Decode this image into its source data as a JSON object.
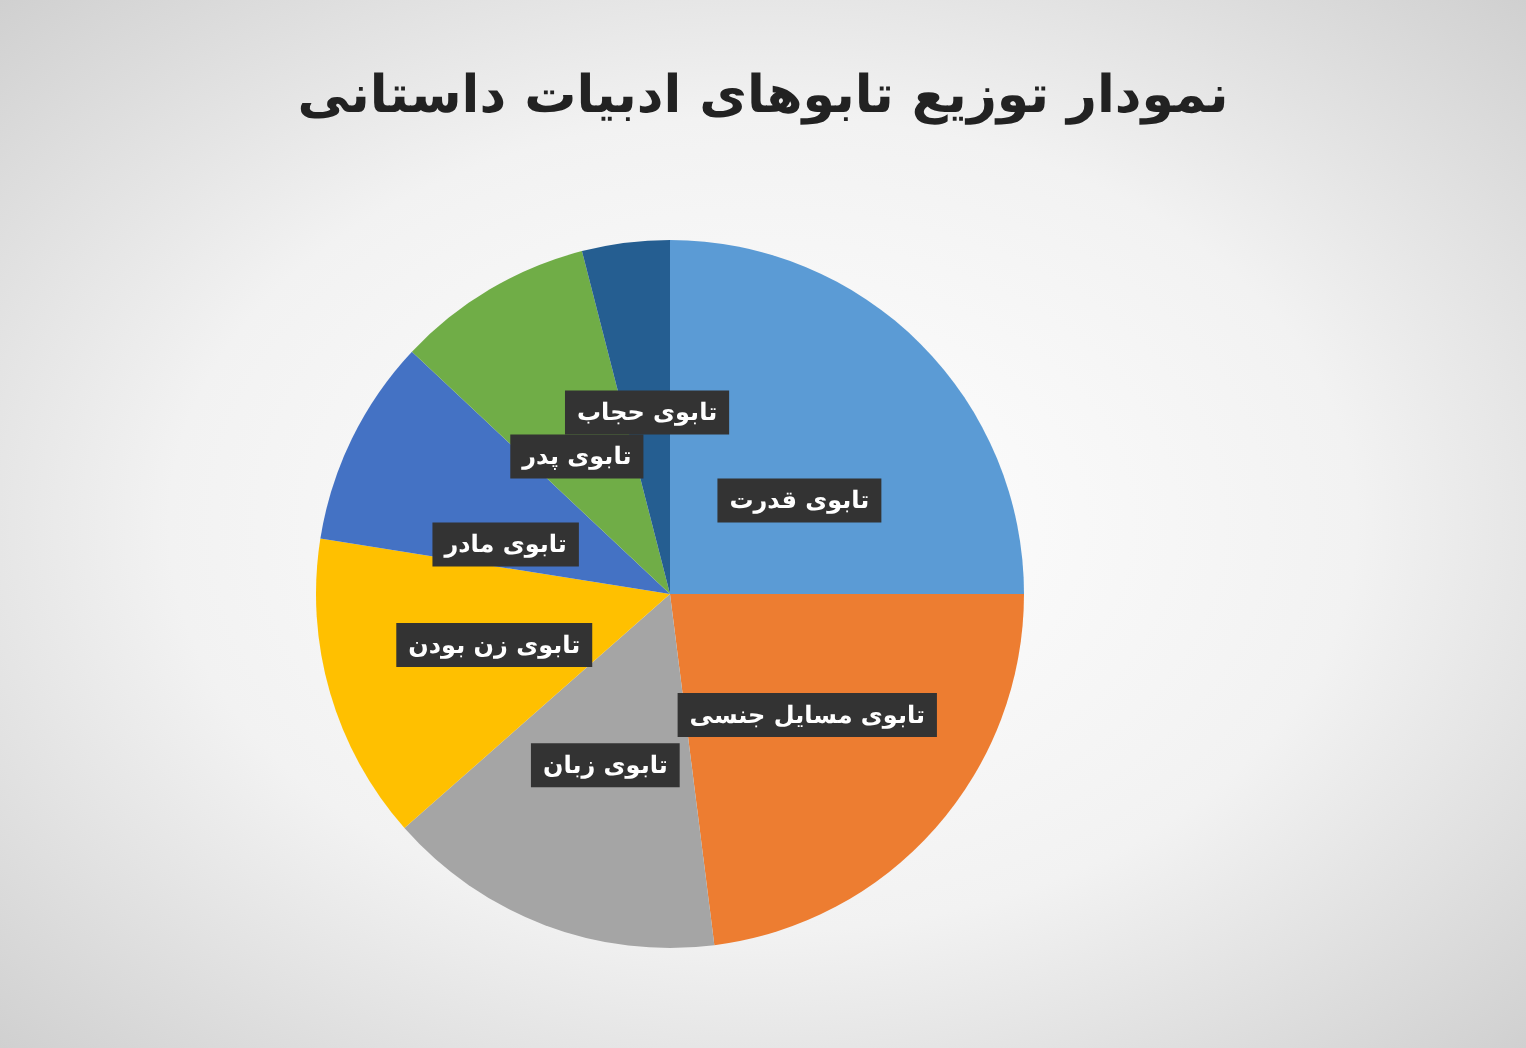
{
  "chart_data": {
    "type": "pie",
    "title": "نمودار توزیع تابوهای ادبیات داستانی",
    "categories": [
      "تابوی قدرت",
      "تابوی مسایل جنسی",
      "تابوی زبان",
      "تابوی زن بودن",
      "تابوی مادر",
      "تابوی پدر",
      "تابوی حجاب"
    ],
    "values": [
      25,
      23,
      15.5,
      14,
      9.5,
      9,
      4
    ],
    "colors": [
      "#5b9bd5",
      "#ed7d31",
      "#a5a5a5",
      "#ffc000",
      "#4472c4",
      "#70ad47",
      "#255e91"
    ],
    "legend": false
  }
}
